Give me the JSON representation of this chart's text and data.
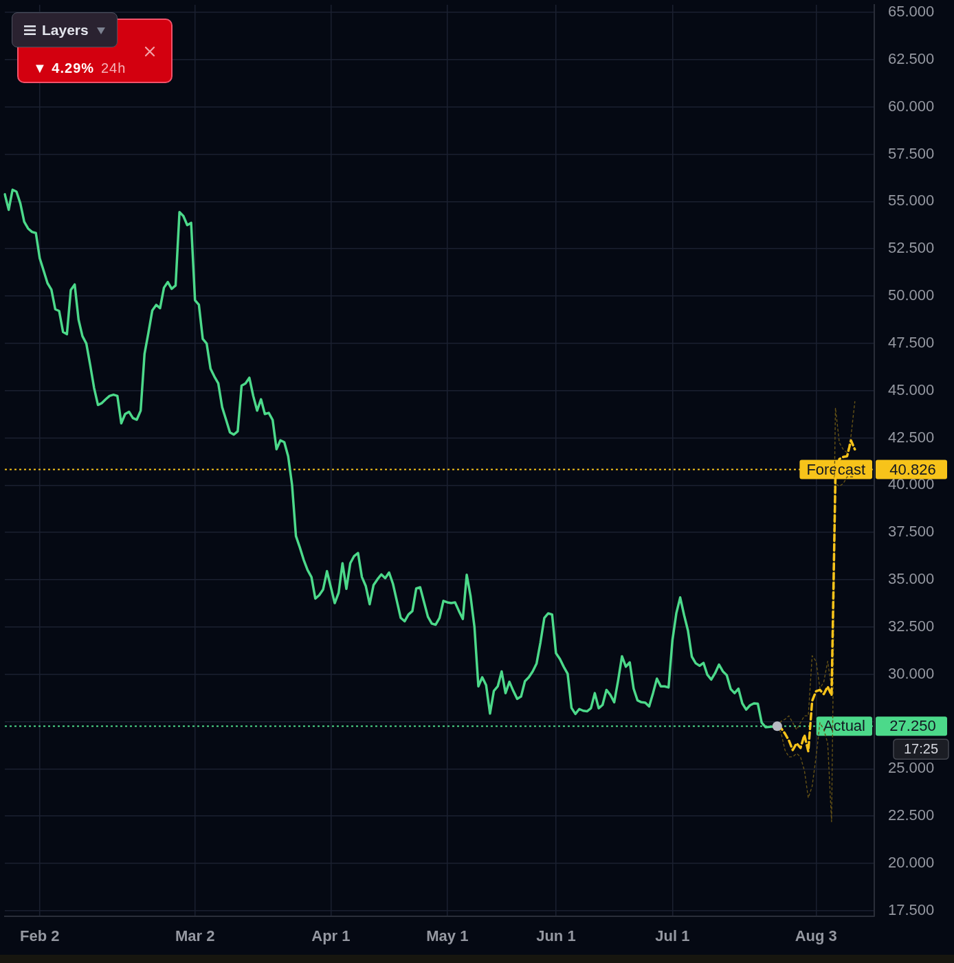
{
  "chart_data": {
    "type": "line",
    "marker": "none",
    "grid": true,
    "legend": false,
    "categories": [
      null,
      null,
      null,
      null,
      null,
      null,
      null,
      null,
      null,
      "Feb 2",
      null,
      null,
      null,
      null,
      null,
      null,
      null,
      null,
      null,
      null,
      null,
      null,
      null,
      null,
      null,
      null,
      null,
      null,
      null,
      null,
      null,
      null,
      null,
      null,
      null,
      null,
      null,
      null,
      null,
      null,
      null,
      null,
      null,
      null,
      null,
      null,
      null,
      null,
      null,
      "Mar 2",
      null,
      null,
      null,
      null,
      null,
      null,
      null,
      null,
      null,
      null,
      null,
      null,
      null,
      null,
      null,
      null,
      null,
      null,
      null,
      null,
      null,
      null,
      null,
      null,
      null,
      null,
      null,
      null,
      null,
      null,
      null,
      null,
      null,
      null,
      "Apr 1",
      null,
      null,
      null,
      null,
      null,
      null,
      null,
      null,
      null,
      null,
      null,
      null,
      null,
      null,
      null,
      null,
      null,
      null,
      null,
      null,
      null,
      null,
      null,
      null,
      null,
      null,
      null,
      null,
      null,
      "May 1",
      null,
      null,
      null,
      null,
      null,
      null,
      null,
      null,
      null,
      null,
      null,
      null,
      null,
      null,
      null,
      null,
      null,
      null,
      null,
      null,
      null,
      null,
      null,
      null,
      null,
      null,
      null,
      "Jun 1",
      null,
      null,
      null,
      null,
      null,
      null,
      null,
      null,
      null,
      null,
      null,
      null,
      null,
      null,
      null,
      null,
      null,
      null,
      null,
      null,
      null,
      null,
      null,
      null,
      null,
      null,
      null,
      null,
      null,
      "Jul 1",
      null,
      null,
      null,
      null,
      null,
      null,
      null,
      null,
      null,
      null,
      null,
      null,
      null,
      null,
      null,
      null,
      null,
      null,
      null,
      null,
      null,
      null,
      null,
      null,
      null,
      null,
      null,
      null,
      null,
      null,
      null,
      null,
      null,
      null,
      null,
      null,
      "Aug 3",
      null,
      null,
      null,
      null,
      null,
      null,
      null,
      null,
      null,
      null,
      null,
      null,
      null,
      null,
      null
    ],
    "series": [
      {
        "type": "line",
        "color": "#4cd98a",
        "line_style": "solid",
        "values": [
          55.38,
          54.56,
          55.62,
          55.52,
          54.9,
          53.93,
          53.57,
          53.39,
          53.33,
          52,
          51.34,
          50.68,
          50.34,
          49.3,
          49.21,
          48.1,
          47.98,
          50.32,
          50.61,
          48.75,
          47.88,
          47.49,
          46.35,
          45.14,
          44.24,
          44.34,
          44.54,
          44.72,
          44.78,
          44.72,
          43.27,
          43.76,
          43.88,
          43.55,
          43.46,
          43.94,
          46.95,
          48.06,
          49.24,
          49.53,
          49.36,
          50.44,
          50.74,
          50.38,
          50.56,
          54.44,
          54.23,
          53.75,
          53.87,
          49.78,
          49.54,
          47.73,
          47.49,
          46.16,
          45.74,
          45.38,
          44.12,
          43.46,
          42.79,
          42.67,
          42.85,
          45.26,
          45.38,
          45.68,
          44.72,
          43.94,
          44.54,
          43.76,
          43.82,
          43.45,
          41.9,
          42.37,
          42.27,
          41.53,
          40.02,
          37.31,
          36.71,
          36.05,
          35.51,
          35.14,
          34,
          34.18,
          34.48,
          35.45,
          34.6,
          33.76,
          34.3,
          35.87,
          34.52,
          35.87,
          36.25,
          36.41,
          35.14,
          34.66,
          33.7,
          34.72,
          35.02,
          35.28,
          35.08,
          35.38,
          34.78,
          33.88,
          32.98,
          32.8,
          33.16,
          33.34,
          34.54,
          34.6,
          33.82,
          33.04,
          32.68,
          32.62,
          32.98,
          33.88,
          33.8,
          33.76,
          33.8,
          33.34,
          32.92,
          35.26,
          34.12,
          32.49,
          29.36,
          29.84,
          29.42,
          27.92,
          29.12,
          29.36,
          30.15,
          29,
          29.6,
          29.12,
          28.7,
          28.82,
          29.63,
          29.84,
          30.15,
          30.57,
          31.68,
          32.98,
          33.22,
          33.16,
          31.11,
          30.81,
          30.39,
          30.03,
          28.22,
          27.9,
          28.16,
          28.07,
          28.04,
          28.2,
          29,
          28.2,
          28.38,
          29.17,
          28.91,
          28.52,
          29.66,
          30.95,
          30.4,
          30.63,
          29.24,
          28.62,
          28.52,
          28.5,
          28.3,
          29,
          29.77,
          29.36,
          29.36,
          29.3,
          31.8,
          33.22,
          34.06,
          33.13,
          32.31,
          30.93,
          30.58,
          30.45,
          30.6,
          29.97,
          29.72,
          30.06,
          30.51,
          30.15,
          29.95,
          29.22,
          29,
          29.24,
          28.46,
          28.13,
          28.36,
          28.46,
          28.44,
          27.44,
          27.2,
          27.22,
          27.23,
          27.25,
          null,
          null,
          null,
          null,
          null,
          null,
          null,
          null,
          null,
          null,
          null,
          null,
          null,
          null,
          null,
          null,
          null,
          null,
          null,
          null,
          null,
          null,
          null,
          null,
          null
        ]
      },
      {
        "type": "line",
        "color": "#f7c31a",
        "line_style": "dashed",
        "values": [
          null,
          null,
          null,
          null,
          null,
          null,
          null,
          null,
          null,
          null,
          null,
          null,
          null,
          null,
          null,
          null,
          null,
          null,
          null,
          null,
          null,
          null,
          null,
          null,
          null,
          null,
          null,
          null,
          null,
          null,
          null,
          null,
          null,
          null,
          null,
          null,
          null,
          null,
          null,
          null,
          null,
          null,
          null,
          null,
          null,
          null,
          null,
          null,
          null,
          null,
          null,
          null,
          null,
          null,
          null,
          null,
          null,
          null,
          null,
          null,
          null,
          null,
          null,
          null,
          null,
          null,
          null,
          null,
          null,
          null,
          null,
          null,
          null,
          null,
          null,
          null,
          null,
          null,
          null,
          null,
          null,
          null,
          null,
          null,
          null,
          null,
          null,
          null,
          null,
          null,
          null,
          null,
          null,
          null,
          null,
          null,
          null,
          null,
          null,
          null,
          null,
          null,
          null,
          null,
          null,
          null,
          null,
          null,
          null,
          null,
          null,
          null,
          null,
          null,
          null,
          null,
          null,
          null,
          null,
          null,
          null,
          null,
          null,
          null,
          null,
          null,
          null,
          null,
          null,
          null,
          null,
          null,
          null,
          null,
          null,
          null,
          null,
          null,
          null,
          null,
          null,
          null,
          null,
          null,
          null,
          null,
          null,
          null,
          null,
          null,
          null,
          null,
          null,
          null,
          null,
          null,
          null,
          null,
          null,
          null,
          null,
          null,
          null,
          null,
          null,
          null,
          null,
          null,
          null,
          null,
          null,
          null,
          null,
          null,
          null,
          null,
          null,
          null,
          null,
          null,
          null,
          null,
          null,
          null,
          null,
          null,
          null,
          null,
          null,
          null,
          null,
          null,
          null,
          null,
          null,
          null,
          null,
          null,
          null,
          27.25,
          27.15,
          26.86,
          26.5,
          25.99,
          26.35,
          26.1,
          26.79,
          25.92,
          28.59,
          29.1,
          29.17,
          28.95,
          29.35,
          28.88,
          40.44,
          41.38,
          41.49,
          41.53,
          42.36,
          41.89,
          null,
          null,
          null,
          null,
          null
        ]
      },
      {
        "type": "line",
        "color": "#665316",
        "line_style": "dotted",
        "values": [
          null,
          null,
          null,
          null,
          null,
          null,
          null,
          null,
          null,
          null,
          null,
          null,
          null,
          null,
          null,
          null,
          null,
          null,
          null,
          null,
          null,
          null,
          null,
          null,
          null,
          null,
          null,
          null,
          null,
          null,
          null,
          null,
          null,
          null,
          null,
          null,
          null,
          null,
          null,
          null,
          null,
          null,
          null,
          null,
          null,
          null,
          null,
          null,
          null,
          null,
          null,
          null,
          null,
          null,
          null,
          null,
          null,
          null,
          null,
          null,
          null,
          null,
          null,
          null,
          null,
          null,
          null,
          null,
          null,
          null,
          null,
          null,
          null,
          null,
          null,
          null,
          null,
          null,
          null,
          null,
          null,
          null,
          null,
          null,
          null,
          null,
          null,
          null,
          null,
          null,
          null,
          null,
          null,
          null,
          null,
          null,
          null,
          null,
          null,
          null,
          null,
          null,
          null,
          null,
          null,
          null,
          null,
          null,
          null,
          null,
          null,
          null,
          null,
          null,
          null,
          null,
          null,
          null,
          null,
          null,
          null,
          null,
          null,
          null,
          null,
          null,
          null,
          null,
          null,
          null,
          null,
          null,
          null,
          null,
          null,
          null,
          null,
          null,
          null,
          null,
          null,
          null,
          null,
          null,
          null,
          null,
          null,
          null,
          null,
          null,
          null,
          null,
          null,
          null,
          null,
          null,
          null,
          null,
          null,
          null,
          null,
          null,
          null,
          null,
          null,
          null,
          null,
          null,
          null,
          null,
          null,
          null,
          null,
          null,
          null,
          null,
          null,
          null,
          null,
          null,
          null,
          null,
          null,
          null,
          null,
          null,
          null,
          null,
          null,
          null,
          null,
          null,
          null,
          null,
          null,
          null,
          null,
          null,
          null,
          27.25,
          27.51,
          27.62,
          27.8,
          27.44,
          27.07,
          27.44,
          27.8,
          27.8,
          30.98,
          30.69,
          29.24,
          29.6,
          30.69,
          29.24,
          44.09,
          42.25,
          41.89,
          41.71,
          42.6,
          44.42,
          null,
          null,
          null,
          null,
          null
        ]
      },
      {
        "type": "line",
        "color": "#665316",
        "line_style": "dotted",
        "values": [
          null,
          null,
          null,
          null,
          null,
          null,
          null,
          null,
          null,
          null,
          null,
          null,
          null,
          null,
          null,
          null,
          null,
          null,
          null,
          null,
          null,
          null,
          null,
          null,
          null,
          null,
          null,
          null,
          null,
          null,
          null,
          null,
          null,
          null,
          null,
          null,
          null,
          null,
          null,
          null,
          null,
          null,
          null,
          null,
          null,
          null,
          null,
          null,
          null,
          null,
          null,
          null,
          null,
          null,
          null,
          null,
          null,
          null,
          null,
          null,
          null,
          null,
          null,
          null,
          null,
          null,
          null,
          null,
          null,
          null,
          null,
          null,
          null,
          null,
          null,
          null,
          null,
          null,
          null,
          null,
          null,
          null,
          null,
          null,
          null,
          null,
          null,
          null,
          null,
          null,
          null,
          null,
          null,
          null,
          null,
          null,
          null,
          null,
          null,
          null,
          null,
          null,
          null,
          null,
          null,
          null,
          null,
          null,
          null,
          null,
          null,
          null,
          null,
          null,
          null,
          null,
          null,
          null,
          null,
          null,
          null,
          null,
          null,
          null,
          null,
          null,
          null,
          null,
          null,
          null,
          null,
          null,
          null,
          null,
          null,
          null,
          null,
          null,
          null,
          null,
          null,
          null,
          null,
          null,
          null,
          null,
          null,
          null,
          null,
          null,
          null,
          null,
          null,
          null,
          null,
          null,
          null,
          null,
          null,
          null,
          null,
          null,
          null,
          null,
          null,
          null,
          null,
          null,
          null,
          null,
          null,
          null,
          null,
          null,
          null,
          null,
          null,
          null,
          null,
          null,
          null,
          null,
          null,
          null,
          null,
          null,
          null,
          null,
          null,
          null,
          null,
          null,
          null,
          null,
          null,
          null,
          null,
          null,
          null,
          27.25,
          26.89,
          25.99,
          25.63,
          25.63,
          25.81,
          25.63,
          24.91,
          23.46,
          24.08,
          25.63,
          27.44,
          27.07,
          26.35,
          22.2,
          40.08,
          39.94,
          40.08,
          40.44,
          40.44,
          40.44,
          null,
          null,
          null,
          null,
          null
        ]
      },
      {
        "type": "scatter",
        "color": "#b7bac3",
        "marker": "circle",
        "values": [
          null,
          null,
          null,
          null,
          null,
          null,
          null,
          null,
          null,
          null,
          null,
          null,
          null,
          null,
          null,
          null,
          null,
          null,
          null,
          null,
          null,
          null,
          null,
          null,
          null,
          null,
          null,
          null,
          null,
          null,
          null,
          null,
          null,
          null,
          null,
          null,
          null,
          null,
          null,
          null,
          null,
          null,
          null,
          null,
          null,
          null,
          null,
          null,
          null,
          null,
          null,
          null,
          null,
          null,
          null,
          null,
          null,
          null,
          null,
          null,
          null,
          null,
          null,
          null,
          null,
          null,
          null,
          null,
          null,
          null,
          null,
          null,
          null,
          null,
          null,
          null,
          null,
          null,
          null,
          null,
          null,
          null,
          null,
          null,
          null,
          null,
          null,
          null,
          null,
          null,
          null,
          null,
          null,
          null,
          null,
          null,
          null,
          null,
          null,
          null,
          null,
          null,
          null,
          null,
          null,
          null,
          null,
          null,
          null,
          null,
          null,
          null,
          null,
          null,
          null,
          null,
          null,
          null,
          null,
          null,
          null,
          null,
          null,
          null,
          null,
          null,
          null,
          null,
          null,
          null,
          null,
          null,
          null,
          null,
          null,
          null,
          null,
          null,
          null,
          null,
          null,
          null,
          null,
          null,
          null,
          null,
          null,
          null,
          null,
          null,
          null,
          null,
          null,
          null,
          null,
          null,
          null,
          null,
          null,
          null,
          null,
          null,
          null,
          null,
          null,
          null,
          null,
          null,
          null,
          null,
          null,
          null,
          null,
          null,
          null,
          null,
          null,
          null,
          null,
          null,
          null,
          null,
          null,
          null,
          null,
          null,
          null,
          null,
          null,
          null,
          null,
          null,
          null,
          null,
          null,
          null,
          null,
          null,
          null,
          27.25,
          null,
          null,
          null,
          null,
          null,
          null,
          null,
          null,
          null,
          null,
          null,
          null,
          null,
          null,
          null,
          null,
          null,
          null,
          null,
          null,
          null,
          null,
          null,
          null,
          null
        ]
      }
    ],
    "ylim": [
      17.2,
      65.4
    ],
    "yticks": [
      {
        "value": 17.5,
        "label": "17.500"
      },
      {
        "value": 20,
        "label": "20.000"
      },
      {
        "value": 22.5,
        "label": "22.500"
      },
      {
        "value": 25,
        "label": "25.000"
      },
      {
        "value": 27.5,
        "label": null
      },
      {
        "value": 30,
        "label": "30.000"
      },
      {
        "value": 32.5,
        "label": "32.500"
      },
      {
        "value": 35,
        "label": "35.000"
      },
      {
        "value": 37.5,
        "label": "37.500"
      },
      {
        "value": 40,
        "label": "40.000"
      },
      {
        "value": 42.5,
        "label": "42.500"
      },
      {
        "value": 45,
        "label": "45.000"
      },
      {
        "value": 47.5,
        "label": "47.500"
      },
      {
        "value": 50,
        "label": "50.000"
      },
      {
        "value": 52.5,
        "label": "52.500"
      },
      {
        "value": 55,
        "label": "55.000"
      },
      {
        "value": 57.5,
        "label": "57.500"
      },
      {
        "value": 60,
        "label": "60.000"
      },
      {
        "value": 62.5,
        "label": "62.500"
      },
      {
        "value": 65,
        "label": "65.000"
      }
    ],
    "ref_lines": [
      {
        "axis": "y",
        "value": 40.826,
        "label": "Forecast",
        "color": "#f7c31a",
        "line_style": "dotted"
      },
      {
        "axis": "y",
        "value": 27.25,
        "label": "Actual",
        "color": "#4cd98a",
        "line_style": "dotted"
      }
    ],
    "annotations": [
      "Layers",
      "▼ 4.29%",
      "24h",
      "40.826",
      "27.250",
      "17:25"
    ]
  }
}
